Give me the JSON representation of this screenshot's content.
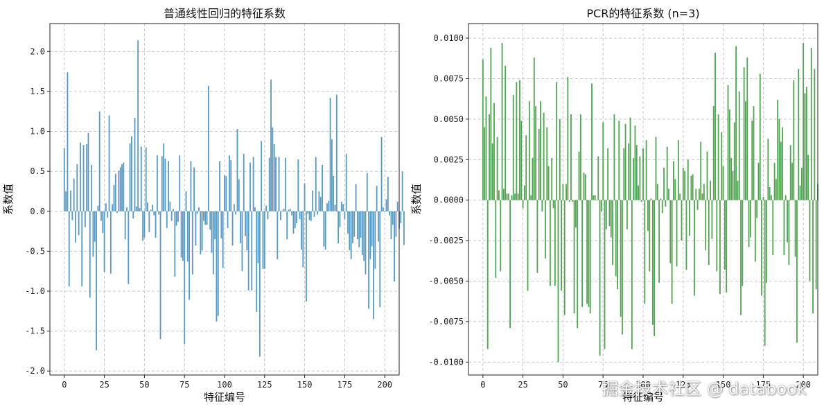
{
  "watermark": "掘金技术社区 @ databook",
  "chart_data": [
    {
      "type": "bar",
      "title": "普通线性回归的特征系数",
      "xlabel": "特征编号",
      "ylabel": "系数值",
      "xlim": [
        -9,
        209
      ],
      "ylim": [
        -2.05,
        2.35
      ],
      "xticks": [
        0,
        25,
        50,
        75,
        100,
        125,
        150,
        175,
        200
      ],
      "xtick_labels": [
        "0",
        "25",
        "50",
        "75",
        "100",
        "125",
        "150",
        "175",
        "200"
      ],
      "yticks": [
        -2.0,
        -1.5,
        -1.0,
        -0.5,
        0.0,
        0.5,
        1.0,
        1.5,
        2.0
      ],
      "ytick_labels": [
        "-2.0",
        "-1.5",
        "-1.0",
        "-0.5",
        "0.0",
        "0.5",
        "1.0",
        "1.5",
        "2.0"
      ],
      "grid": true,
      "color": "#5b9bc2",
      "values": [
        0.79,
        0.25,
        1.74,
        -0.94,
        0.26,
        -0.11,
        0.41,
        -0.39,
        0.59,
        -0.3,
        0.86,
        -0.94,
        0.83,
        -0.2,
        0.84,
        0.98,
        -1.08,
        0.58,
        -0.57,
        -0.38,
        -1.74,
        0.07,
        1.25,
        -0.12,
        -0.27,
        -0.76,
        0.1,
        -0.08,
        1.2,
        -0.78,
        0.09,
        0.33,
        0.47,
        -0.02,
        0.51,
        0.55,
        0.59,
        0.61,
        -0.35,
        0.05,
        -0.91,
        0.85,
        0.94,
        -0.09,
        1.17,
        0.06,
        2.14,
        0.04,
        0.81,
        -0.37,
        -0.33,
        0.8,
        0.11,
        -0.26,
        0.02,
        0.08,
        -0.05,
        -0.33,
        0.7,
        -0.04,
        -1.6,
        0.69,
        0.85,
        0.66,
        -0.21,
        0.63,
        0.12,
        -0.12,
        0.03,
        -0.82,
        -0.18,
        -0.13,
        0.7,
        -0.58,
        -0.62,
        -1.66,
        0.25,
        -0.63,
        -1.11,
        0.63,
        -0.79,
        0.55,
        -0.43,
        -0.03,
        0.05,
        -0.54,
        -0.49,
        -0.12,
        -0.17,
        -0.17,
        1.57,
        -0.23,
        -0.52,
        -0.79,
        -0.35,
        -1.38,
        -1.31,
        0.63,
        -0.34,
        -0.71,
        0.45,
        0.44,
        -0.21,
        0.7,
        0.64,
        -0.43,
        0.09,
        -0.04,
        1.03,
        0.4,
        -0.4,
        -0.75,
        0.72,
        -0.31,
        -0.49,
        -0.99,
        0.61,
        -0.99,
        0.68,
        0.05,
        -1.26,
        -0.65,
        -1.82,
        0.88,
        -0.72,
        -0.72,
        0.07,
        -0.1,
        0.67,
        1.65,
        1.05,
        0.84,
        0.68,
        -0.6,
        0.68,
        -0.11,
        0.01,
        0.03,
        0.67,
        -0.35,
        0.02,
        0.03,
        -0.05,
        -0.28,
        -0.21,
        -0.15,
        0.65,
        -0.1,
        -0.48,
        -0.7,
        0.35,
        -1.13,
        -0.03,
        -0.11,
        -0.12,
        0.26,
        -0.07,
        0.68,
        -0.04,
        0.25,
        0.18,
        0.58,
        -0.44,
        -0.48,
        0.1,
        0.13,
        1.42,
        0.9,
        0.44,
        0.08,
        1.46,
        -0.4,
        -0.2,
        0.12,
        0.09,
        -0.1,
        0.72,
        -0.28,
        -0.49,
        -0.6,
        -0.4,
        -0.32,
        0.34,
        -0.35,
        -0.45,
        -0.33,
        -0.55,
        -0.62,
        -0.79,
        0.48,
        -1.22,
        -0.6,
        -0.44,
        -1.35,
        -0.72,
        0.32,
        -0.38,
        -1.2,
        0.93,
        0.05,
        -0.01,
        0.15,
        0.43,
        -0.05,
        -0.35,
        -0.17,
        -0.88,
        -0.32,
        0.12,
        -0.22,
        -0.15,
        0.5,
        -0.42
      ]
    },
    {
      "type": "bar",
      "title": "PCR的特征系数 (n=3)",
      "xlabel": "特征编号",
      "ylabel": "系数值",
      "xlim": [
        -9,
        209
      ],
      "ylim": [
        -0.0108,
        0.0109
      ],
      "xticks": [
        0,
        25,
        50,
        75,
        100,
        125,
        150,
        175,
        200
      ],
      "xtick_labels": [
        "0",
        "25",
        "50",
        "75",
        "100",
        "125",
        "150",
        "175",
        "200"
      ],
      "yticks": [
        -0.01,
        -0.0075,
        -0.005,
        -0.0025,
        0.0,
        0.0025,
        0.005,
        0.0075,
        0.01
      ],
      "ytick_labels": [
        "-0.0100",
        "-0.0075",
        "-0.0050",
        "-0.0025",
        "0.0000",
        "0.0025",
        "0.0050",
        "0.0075",
        "0.0100"
      ],
      "grid": true,
      "color": "#55a455",
      "values": [
        0.0087,
        0.0045,
        0.0064,
        -0.0092,
        0.0053,
        0.0094,
        0.0035,
        0.006,
        -0.0048,
        0.0039,
        0.0006,
        -0.0044,
        0.0097,
        0.0007,
        0.0083,
        0.0004,
        0.0004,
        -0.0079,
        0.0003,
        0.0065,
        0.0004,
        0.0073,
        0.0004,
        0.0074,
        0.0049,
        -0.0005,
        0.0009,
        0.004,
        -0.0056,
        0.0061,
        0.0003,
        0.0026,
        0.0088,
        0.0058,
        -0.0045,
        0.0044,
        0.0061,
        -0.0007,
        0.0054,
        -0.0036,
        0.0045,
        0.0021,
        -0.0053,
        0.0026,
        -0.0005,
        -0.0053,
        0.0073,
        -0.01,
        0.005,
        -0.0056,
        0.001,
        -0.0071,
        0.001,
        0.0076,
        -0.0001,
        0.0053,
        -0.0001,
        -0.007,
        -0.0017,
        -0.0079,
        0.003,
        0.0053,
        -0.0066,
        0.0017,
        0.0016,
        -0.0064,
        -0.0066,
        -0.007,
        0.0072,
        0.0003,
        0.0003,
        0.0,
        0.0027,
        -0.0096,
        -0.0007,
        0.0048,
        -0.0092,
        -0.0018,
        0.0032,
        -0.0016,
        -0.0023,
        -0.004,
        0.0053,
        -0.0047,
        -0.0055,
        0.0049,
        -0.0072,
        -0.0083,
        0.0032,
        0.0047,
        -0.0018,
        0.0035,
        0.0051,
        -0.0092,
        0.0026,
        0.0046,
        0.0034,
        0.0009,
        0.0027,
        -0.0001,
        0.0032,
        -0.0064,
        0.0037,
        -0.0019,
        -0.0044,
        0.0001,
        -0.0077,
        -0.0084,
        0.0039,
        0.001,
        -0.0051,
        0.0001,
        -0.0008,
        0.002,
        -0.0004,
        0.0033,
        0.0007,
        -0.0039,
        -0.0064,
        0.0024,
        0.0013,
        -0.0041,
        0.0037,
        0.0004,
        -0.0025,
        0.002,
        0.0018,
        -0.0043,
        0.0025,
        -0.0022,
        0.0015,
        0.0016,
        -0.0059,
        0.0007,
        -0.0006,
        0.0007,
        0.0036,
        0.0004,
        0.001,
        -0.0031,
        0.003,
        -0.004,
        0.0012,
        -0.0024,
        0.0058,
        0.0091,
        -0.0044,
        0.0053,
        -0.0058,
        0.0042,
        0.0021,
        -0.0043,
        -0.0057,
        0.0071,
        0.0056,
        0.0026,
        0.0018,
        0.0048,
        0.0095,
        0.0012,
        0.0067,
        -0.0071,
        -0.0053,
        0.0082,
        0.0061,
        0.0088,
        -0.0029,
        -0.0023,
        0.0049,
        0.0058,
        -0.0038,
        -0.0011,
        0.0023,
        0.0078,
        -0.0059,
        0.0002,
        -0.009,
        -0.0051,
        0.0038,
        0.0008,
        0.0003,
        -0.0034,
        0.0023,
        0.0013,
        0.0062,
        0.005,
        0.0036,
        0.0045,
        -0.0034,
        0.0003,
        -0.0026,
        -0.004,
        0.0034,
        0.0023,
        0.0074,
        -0.0035,
        -0.0088,
        0.0081,
        0.0009,
        0.002,
        0.0097,
        0.0066,
        0.007,
        0.0028,
        -0.005,
        0.0094,
        -0.007,
        0.0081,
        -0.0055,
        0.001
      ]
    }
  ]
}
